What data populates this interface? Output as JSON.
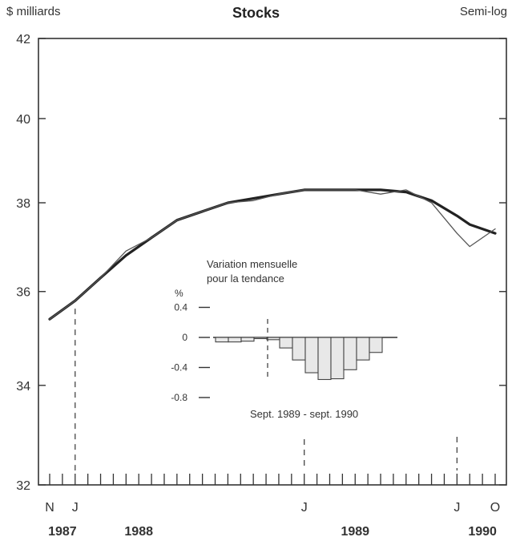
{
  "header": {
    "unit_label": "$ milliards",
    "title": "Stocks",
    "scale_label": "Semi-log"
  },
  "chart_data": [
    {
      "type": "line",
      "title": "Stocks",
      "ylabel": "$ milliards",
      "scale": "semi-log",
      "ylim": [
        32,
        42
      ],
      "yticks": [
        "32",
        "34",
        "36",
        "38",
        "40",
        "42"
      ],
      "xaxis": {
        "start": "1987-11",
        "end": "1990-10",
        "tick_labels": [
          {
            "label": "N",
            "month": "1987-11"
          },
          {
            "label": "J",
            "month": "1988-01"
          },
          {
            "label": "J",
            "month": "1989-07"
          },
          {
            "label": "J",
            "month": "1990-07"
          },
          {
            "label": "O",
            "month": "1990-10"
          }
        ],
        "year_labels": [
          {
            "label": "1987",
            "month": "1987-12"
          },
          {
            "label": "1988",
            "month": "1988-06"
          },
          {
            "label": "1989",
            "month": "1989-11"
          },
          {
            "label": "1990",
            "month": "1990-09"
          }
        ]
      },
      "series": [
        {
          "role": "trend",
          "x": [
            "1987-11",
            "1988-01",
            "1988-03",
            "1988-05",
            "1988-07",
            "1988-09",
            "1988-11",
            "1989-01",
            "1989-03",
            "1989-05",
            "1989-07",
            "1989-09",
            "1989-11",
            "1990-01",
            "1990-03",
            "1990-05",
            "1990-07",
            "1990-08",
            "1990-09",
            "1990-10"
          ],
          "values": [
            35.4,
            35.8,
            36.3,
            36.8,
            37.2,
            37.6,
            37.8,
            38.0,
            38.1,
            38.2,
            38.3,
            38.3,
            38.3,
            38.3,
            38.25,
            38.05,
            37.7,
            37.5,
            37.4,
            37.3
          ]
        },
        {
          "role": "actual",
          "x": [
            "1987-11",
            "1988-01",
            "1988-03",
            "1988-05",
            "1988-07",
            "1988-09",
            "1988-11",
            "1989-01",
            "1989-03",
            "1989-05",
            "1989-07",
            "1989-09",
            "1989-11",
            "1990-01",
            "1990-03",
            "1990-05",
            "1990-07",
            "1990-08",
            "1990-09",
            "1990-10"
          ],
          "values": [
            35.4,
            35.8,
            36.3,
            36.9,
            37.2,
            37.6,
            37.8,
            38.0,
            38.05,
            38.2,
            38.3,
            38.3,
            38.3,
            38.2,
            38.3,
            38.0,
            37.3,
            37.0,
            37.2,
            37.4
          ]
        }
      ]
    },
    {
      "type": "bar",
      "title": "Variation mensuelle pour la tendance",
      "title_lines": [
        "Variation mensuelle",
        "pour la tendance"
      ],
      "ylabel": "%",
      "ylim": [
        -0.8,
        0.4
      ],
      "yticks": [
        "0.4",
        "0",
        "-0.4",
        "-0.8"
      ],
      "annotation": "Sept. 1989 - sept. 1990",
      "categories": [
        "1989-09",
        "1989-10",
        "1989-11",
        "1989-12",
        "1990-01",
        "1990-02",
        "1990-03",
        "1990-04",
        "1990-05",
        "1990-06",
        "1990-07",
        "1990-08",
        "1990-09"
      ],
      "values": [
        -0.06,
        -0.06,
        -0.05,
        0.0,
        -0.03,
        -0.14,
        -0.3,
        -0.47,
        -0.56,
        -0.55,
        -0.43,
        -0.3,
        -0.2
      ]
    }
  ]
}
